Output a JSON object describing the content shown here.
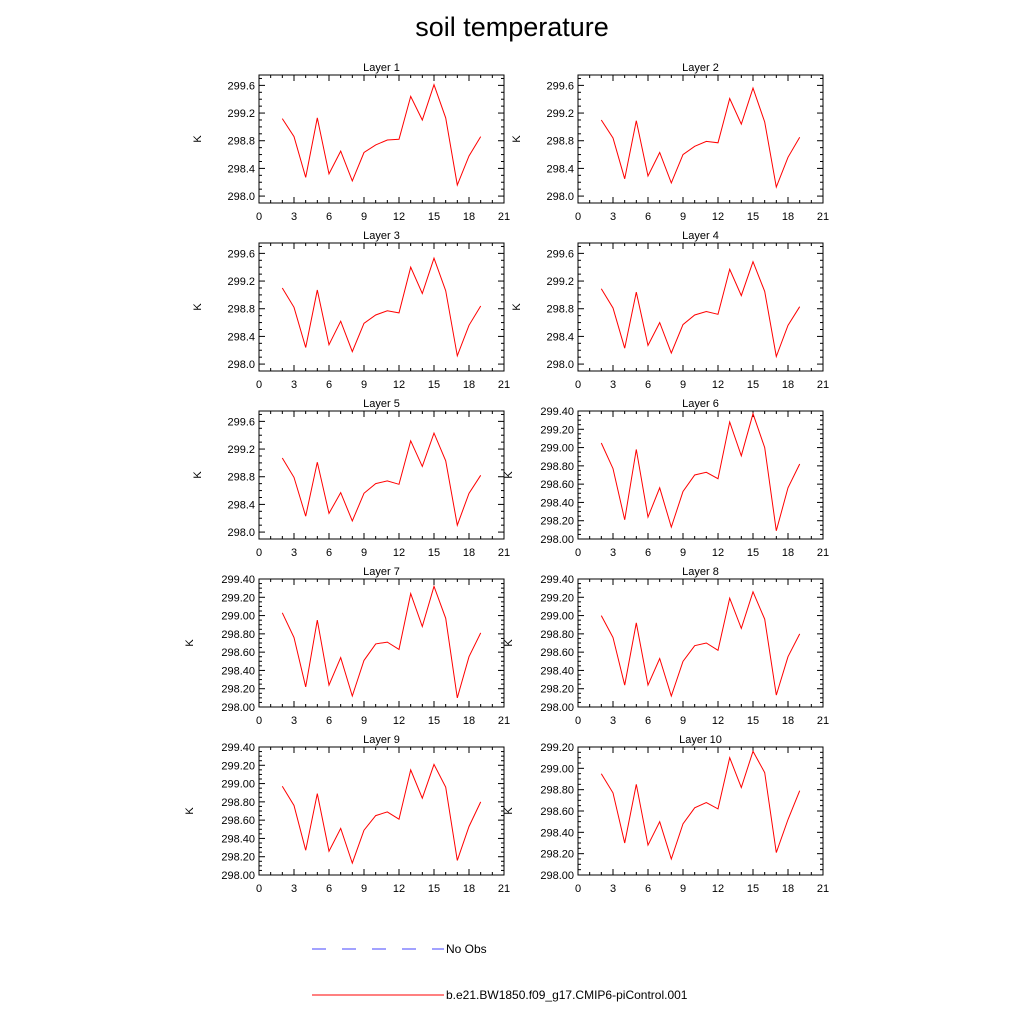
{
  "title": "soil temperature",
  "colors": {
    "model": "#ff0000",
    "obs": "#4444ff"
  },
  "legend": {
    "obs_label": "No Obs",
    "model_label": "b.e21.BW1850.f09_g17.CMIP6-piControl.001"
  },
  "chart_data": [
    {
      "type": "line",
      "title": "Layer 1",
      "ylabel": "K",
      "xlim": [
        0,
        21
      ],
      "xticks": [
        "0",
        "3",
        "6",
        "9",
        "12",
        "15",
        "18",
        "21"
      ],
      "ylim": [
        297.9,
        299.75
      ],
      "yticks": [
        "298.0",
        "298.4",
        "298.8",
        "299.2",
        "299.6"
      ],
      "x": [
        2,
        3,
        4,
        5,
        6,
        7,
        8,
        9,
        10,
        11,
        12,
        13,
        14,
        15,
        16,
        17,
        18,
        19
      ],
      "series": [
        {
          "name": "b.e21.BW1850.f09_g17.CMIP6-piControl.001",
          "values": [
            299.12,
            298.86,
            298.27,
            299.13,
            298.32,
            298.65,
            298.22,
            298.63,
            298.74,
            298.81,
            298.82,
            299.44,
            299.1,
            299.61,
            299.13,
            298.16,
            298.58,
            298.86
          ]
        }
      ]
    },
    {
      "type": "line",
      "title": "Layer 2",
      "ylabel": "K",
      "xlim": [
        0,
        21
      ],
      "xticks": [
        "0",
        "3",
        "6",
        "9",
        "12",
        "15",
        "18",
        "21"
      ],
      "ylim": [
        297.9,
        299.75
      ],
      "yticks": [
        "298.0",
        "298.4",
        "298.8",
        "299.2",
        "299.6"
      ],
      "x": [
        2,
        3,
        4,
        5,
        6,
        7,
        8,
        9,
        10,
        11,
        12,
        13,
        14,
        15,
        16,
        17,
        18,
        19
      ],
      "series": [
        {
          "name": "b.e21.BW1850.f09_g17.CMIP6-piControl.001",
          "values": [
            299.1,
            298.84,
            298.25,
            299.09,
            298.29,
            298.63,
            298.19,
            298.6,
            298.72,
            298.79,
            298.77,
            299.41,
            299.04,
            299.56,
            299.07,
            298.13,
            298.56,
            298.85
          ]
        }
      ]
    },
    {
      "type": "line",
      "title": "Layer 3",
      "ylabel": "K",
      "xlim": [
        0,
        21
      ],
      "xticks": [
        "0",
        "3",
        "6",
        "9",
        "12",
        "15",
        "18",
        "21"
      ],
      "ylim": [
        297.9,
        299.75
      ],
      "yticks": [
        "298.0",
        "298.4",
        "298.8",
        "299.2",
        "299.6"
      ],
      "x": [
        2,
        3,
        4,
        5,
        6,
        7,
        8,
        9,
        10,
        11,
        12,
        13,
        14,
        15,
        16,
        17,
        18,
        19
      ],
      "series": [
        {
          "name": "b.e21.BW1850.f09_g17.CMIP6-piControl.001",
          "values": [
            299.1,
            298.82,
            298.24,
            299.07,
            298.28,
            298.62,
            298.18,
            298.59,
            298.71,
            298.77,
            298.74,
            299.4,
            299.02,
            299.53,
            299.06,
            298.12,
            298.56,
            298.84
          ]
        }
      ]
    },
    {
      "type": "line",
      "title": "Layer 4",
      "ylabel": "K",
      "xlim": [
        0,
        21
      ],
      "xticks": [
        "0",
        "3",
        "6",
        "9",
        "12",
        "15",
        "18",
        "21"
      ],
      "ylim": [
        297.9,
        299.75
      ],
      "yticks": [
        "298.0",
        "298.4",
        "298.8",
        "299.2",
        "299.6"
      ],
      "x": [
        2,
        3,
        4,
        5,
        6,
        7,
        8,
        9,
        10,
        11,
        12,
        13,
        14,
        15,
        16,
        17,
        18,
        19
      ],
      "series": [
        {
          "name": "b.e21.BW1850.f09_g17.CMIP6-piControl.001",
          "values": [
            299.09,
            298.81,
            298.23,
            299.04,
            298.27,
            298.6,
            298.16,
            298.57,
            298.71,
            298.76,
            298.72,
            299.37,
            298.99,
            299.48,
            299.05,
            298.11,
            298.56,
            298.83
          ]
        }
      ]
    },
    {
      "type": "line",
      "title": "Layer 5",
      "ylabel": "K",
      "xlim": [
        0,
        21
      ],
      "xticks": [
        "0",
        "3",
        "6",
        "9",
        "12",
        "15",
        "18",
        "21"
      ],
      "ylim": [
        297.9,
        299.75
      ],
      "yticks": [
        "298.0",
        "298.4",
        "298.8",
        "299.2",
        "299.6"
      ],
      "x": [
        2,
        3,
        4,
        5,
        6,
        7,
        8,
        9,
        10,
        11,
        12,
        13,
        14,
        15,
        16,
        17,
        18,
        19
      ],
      "series": [
        {
          "name": "b.e21.BW1850.f09_g17.CMIP6-piControl.001",
          "values": [
            299.07,
            298.79,
            298.23,
            299.01,
            298.27,
            298.57,
            298.16,
            298.56,
            298.7,
            298.74,
            298.69,
            299.32,
            298.95,
            299.43,
            299.03,
            298.1,
            298.56,
            298.82
          ]
        }
      ]
    },
    {
      "type": "line",
      "title": "Layer 6",
      "ylabel": "K",
      "xlim": [
        0,
        21
      ],
      "xticks": [
        "0",
        "3",
        "6",
        "9",
        "12",
        "15",
        "18",
        "21"
      ],
      "ylim": [
        298.0,
        299.4
      ],
      "yticks": [
        "298.00",
        "298.20",
        "298.40",
        "298.60",
        "298.80",
        "299.00",
        "299.20",
        "299.40"
      ],
      "x": [
        2,
        3,
        4,
        5,
        6,
        7,
        8,
        9,
        10,
        11,
        12,
        13,
        14,
        15,
        16,
        17,
        18,
        19
      ],
      "series": [
        {
          "name": "b.e21.BW1850.f09_g17.CMIP6-piControl.001",
          "values": [
            299.05,
            298.77,
            298.21,
            298.98,
            298.24,
            298.56,
            298.13,
            298.52,
            298.7,
            298.73,
            298.66,
            299.28,
            298.91,
            299.37,
            299.0,
            298.09,
            298.56,
            298.82
          ]
        }
      ]
    },
    {
      "type": "line",
      "title": "Layer 7",
      "ylabel": "K",
      "xlim": [
        0,
        21
      ],
      "xticks": [
        "0",
        "3",
        "6",
        "9",
        "12",
        "15",
        "18",
        "21"
      ],
      "ylim": [
        298.0,
        299.4
      ],
      "yticks": [
        "298.00",
        "298.20",
        "298.40",
        "298.60",
        "298.80",
        "299.00",
        "299.20",
        "299.40"
      ],
      "x": [
        2,
        3,
        4,
        5,
        6,
        7,
        8,
        9,
        10,
        11,
        12,
        13,
        14,
        15,
        16,
        17,
        18,
        19
      ],
      "series": [
        {
          "name": "b.e21.BW1850.f09_g17.CMIP6-piControl.001",
          "values": [
            299.03,
            298.76,
            298.22,
            298.95,
            298.24,
            298.54,
            298.12,
            298.51,
            298.69,
            298.71,
            298.63,
            299.24,
            298.88,
            299.32,
            298.97,
            298.1,
            298.55,
            298.81
          ]
        }
      ]
    },
    {
      "type": "line",
      "title": "Layer 8",
      "ylabel": "K",
      "xlim": [
        0,
        21
      ],
      "xticks": [
        "0",
        "3",
        "6",
        "9",
        "12",
        "15",
        "18",
        "21"
      ],
      "ylim": [
        298.0,
        299.4
      ],
      "yticks": [
        "298.00",
        "298.20",
        "298.40",
        "298.60",
        "298.80",
        "299.00",
        "299.20",
        "299.40"
      ],
      "x": [
        2,
        3,
        4,
        5,
        6,
        7,
        8,
        9,
        10,
        11,
        12,
        13,
        14,
        15,
        16,
        17,
        18,
        19
      ],
      "series": [
        {
          "name": "b.e21.BW1850.f09_g17.CMIP6-piControl.001",
          "values": [
            299.0,
            298.76,
            298.24,
            298.92,
            298.24,
            298.53,
            298.12,
            298.5,
            298.67,
            298.7,
            298.62,
            299.19,
            298.86,
            299.26,
            298.96,
            298.13,
            298.55,
            298.8
          ]
        }
      ]
    },
    {
      "type": "line",
      "title": "Layer 9",
      "ylabel": "K",
      "xlim": [
        0,
        21
      ],
      "xticks": [
        "0",
        "3",
        "6",
        "9",
        "12",
        "15",
        "18",
        "21"
      ],
      "ylim": [
        298.0,
        299.4
      ],
      "yticks": [
        "298.00",
        "298.20",
        "298.40",
        "298.60",
        "298.80",
        "299.00",
        "299.20",
        "299.40"
      ],
      "x": [
        2,
        3,
        4,
        5,
        6,
        7,
        8,
        9,
        10,
        11,
        12,
        13,
        14,
        15,
        16,
        17,
        18,
        19
      ],
      "series": [
        {
          "name": "b.e21.BW1850.f09_g17.CMIP6-piControl.001",
          "values": [
            298.97,
            298.76,
            298.27,
            298.89,
            298.26,
            298.51,
            298.13,
            298.49,
            298.65,
            298.69,
            298.61,
            299.15,
            298.84,
            299.21,
            298.96,
            298.16,
            298.53,
            298.8
          ]
        }
      ]
    },
    {
      "type": "line",
      "title": "Layer 10",
      "ylabel": "K",
      "xlim": [
        0,
        21
      ],
      "xticks": [
        "0",
        "3",
        "6",
        "9",
        "12",
        "15",
        "18",
        "21"
      ],
      "ylim": [
        298.0,
        299.2
      ],
      "yticks": [
        "298.00",
        "298.20",
        "298.40",
        "298.60",
        "298.80",
        "299.00",
        "299.20"
      ],
      "x": [
        2,
        3,
        4,
        5,
        6,
        7,
        8,
        9,
        10,
        11,
        12,
        13,
        14,
        15,
        16,
        17,
        18,
        19
      ],
      "series": [
        {
          "name": "b.e21.BW1850.f09_g17.CMIP6-piControl.001",
          "values": [
            298.95,
            298.77,
            298.3,
            298.85,
            298.28,
            298.5,
            298.15,
            298.48,
            298.63,
            298.68,
            298.62,
            299.1,
            298.82,
            299.16,
            298.96,
            298.21,
            298.52,
            298.79
          ]
        }
      ]
    }
  ]
}
